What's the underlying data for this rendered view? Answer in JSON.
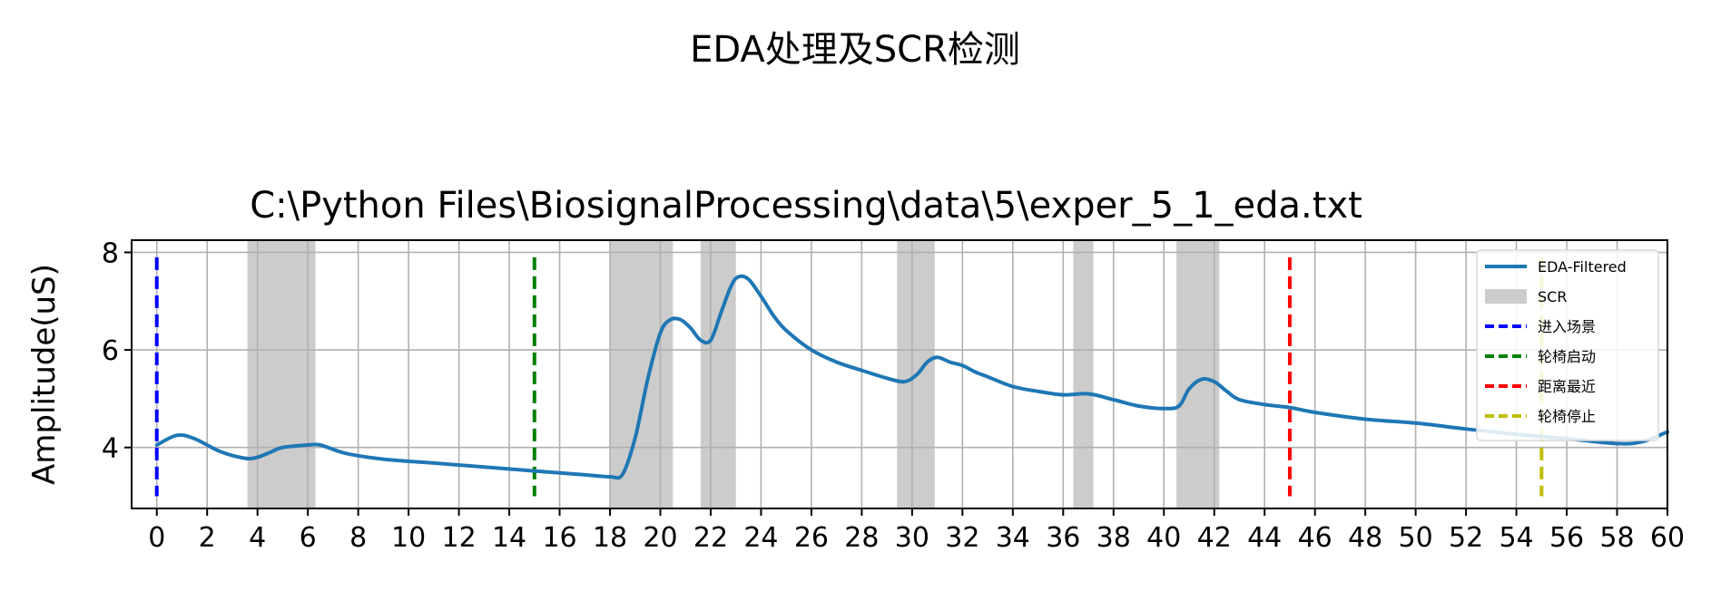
{
  "figure": {
    "suptitle": "EDA处理及SCR检测"
  },
  "chart_data": {
    "type": "line",
    "title": "C:\\Python Files\\BiosignalProcessing\\data\\5\\exper_5_1_eda.txt",
    "xlabel": "",
    "ylabel": "Amplitude(uS)",
    "xlim": [
      -1,
      60
    ],
    "ylim": [
      2.75,
      8.25
    ],
    "xticks": [
      "0",
      "2",
      "4",
      "6",
      "8",
      "10",
      "12",
      "14",
      "16",
      "18",
      "20",
      "22",
      "24",
      "26",
      "28",
      "30",
      "32",
      "34",
      "36",
      "38",
      "40",
      "42",
      "44",
      "46",
      "48",
      "50",
      "52",
      "54",
      "56",
      "58",
      "60"
    ],
    "yticks": [
      "4",
      "6",
      "8"
    ],
    "grid": true,
    "legend_position": "upper-right",
    "series": [
      {
        "name": "EDA-Filtered",
        "color": "#1f77b4",
        "x": [
          0,
          0.8,
          1.5,
          2.5,
          3.5,
          4,
          4.5,
          5,
          6,
          6.5,
          7.5,
          9,
          11,
          13,
          15,
          17,
          18,
          18.5,
          19,
          19.5,
          20,
          20.4,
          20.8,
          21.2,
          21.6,
          22,
          22.4,
          22.8,
          23.1,
          23.5,
          24,
          24.5,
          25,
          26,
          27,
          28,
          29,
          29.7,
          30.2,
          30.6,
          31,
          31.5,
          32,
          32.5,
          33,
          34,
          35,
          36,
          37,
          38,
          39,
          40,
          40.6,
          41,
          41.5,
          42,
          42.5,
          43,
          44,
          45,
          46,
          48,
          50,
          52,
          54,
          56,
          58,
          59,
          60
        ],
        "y": [
          4.05,
          4.25,
          4.18,
          3.92,
          3.78,
          3.8,
          3.9,
          4.0,
          4.05,
          4.05,
          3.88,
          3.76,
          3.68,
          3.6,
          3.52,
          3.44,
          3.4,
          3.45,
          4.2,
          5.4,
          6.35,
          6.62,
          6.62,
          6.45,
          6.2,
          6.2,
          6.75,
          7.3,
          7.5,
          7.45,
          7.1,
          6.7,
          6.4,
          6.0,
          5.75,
          5.58,
          5.42,
          5.35,
          5.5,
          5.75,
          5.85,
          5.75,
          5.68,
          5.55,
          5.45,
          5.25,
          5.15,
          5.08,
          5.1,
          4.98,
          4.85,
          4.8,
          4.85,
          5.2,
          5.4,
          5.35,
          5.15,
          4.98,
          4.88,
          4.82,
          4.72,
          4.58,
          4.5,
          4.38,
          4.27,
          4.18,
          4.08,
          4.12,
          4.32
        ]
      }
    ],
    "scr_regions": [
      [
        3.6,
        6.3
      ],
      [
        18.0,
        20.5
      ],
      [
        21.6,
        23.0
      ],
      [
        29.4,
        30.9
      ],
      [
        36.4,
        37.2
      ],
      [
        40.5,
        42.2
      ]
    ],
    "scr_color": "#cccccc",
    "events": [
      {
        "name": "进入场景",
        "x": 0,
        "color": "#0000ff"
      },
      {
        "name": "轮椅启动",
        "x": 15,
        "color": "#008000"
      },
      {
        "name": "距离最近",
        "x": 45,
        "color": "#ff0000"
      },
      {
        "name": "轮椅停止",
        "x": 55,
        "color": "#bfbf00"
      }
    ],
    "legend": [
      {
        "label": "EDA-Filtered",
        "kind": "line",
        "color": "#1f77b4"
      },
      {
        "label": "SCR",
        "kind": "patch",
        "color": "#cccccc"
      },
      {
        "label": "进入场景",
        "kind": "dash",
        "color": "#0000ff"
      },
      {
        "label": "轮椅启动",
        "kind": "dash",
        "color": "#008000"
      },
      {
        "label": "距离最近",
        "kind": "dash",
        "color": "#ff0000"
      },
      {
        "label": "轮椅停止",
        "kind": "dash",
        "color": "#bfbf00"
      }
    ]
  }
}
